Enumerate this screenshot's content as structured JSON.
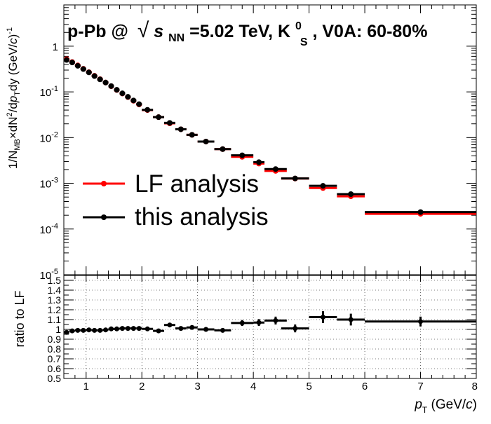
{
  "chart_data": [
    {
      "type": "scatter",
      "panel": "top",
      "title": "p-Pb @ √s_NN=5.02 TeV, K0S, V0A: 60-80%",
      "title_parts": {
        "prefix": "p-Pb @",
        "sqrt_symbol": "√",
        "s": "s",
        "s_sub": "NN",
        "energy": "=5.02 TeV, K",
        "k_sup": "0",
        "k_sub": "S",
        "suffix": ", V0A: 60-80%"
      },
      "ylabel_parts": {
        "prefix": "1/N",
        "sub1": "MB",
        "mid1": "×dN",
        "sup1": "2",
        "mid2": "/d",
        "p": "p",
        "sub2": "T",
        "mid3": "dy (GeV/",
        "c": "c",
        "close": ")",
        "sup2": "-1"
      },
      "yscale": "log",
      "xlim": [
        0.6,
        8
      ],
      "ylim": [
        1e-05,
        8
      ],
      "yticks": [
        {
          "value": 1e-05,
          "base": "10",
          "exp": "-5"
        },
        {
          "value": 0.0001,
          "base": "10",
          "exp": "-4"
        },
        {
          "value": 0.001,
          "base": "10",
          "exp": "-3"
        },
        {
          "value": 0.01,
          "base": "10",
          "exp": "-2"
        },
        {
          "value": 0.1,
          "base": "10",
          "exp": "-1"
        },
        {
          "value": 1,
          "base": "1",
          "exp": ""
        }
      ],
      "legend": {
        "placement": "lower-left",
        "entries": [
          {
            "label": "LF analysis",
            "color": "#ff0000"
          },
          {
            "label": "this analysis",
            "color": "#000000"
          }
        ]
      },
      "series": [
        {
          "name": "LF analysis",
          "color": "#ff0000",
          "x": [
            0.65,
            0.75,
            0.85,
            0.95,
            1.05,
            1.15,
            1.25,
            1.35,
            1.45,
            1.55,
            1.65,
            1.75,
            1.85,
            1.95,
            2.1,
            2.3,
            2.5,
            2.7,
            2.9,
            3.15,
            3.45,
            3.8,
            4.1,
            4.4,
            4.75,
            5.25,
            5.75,
            7.0
          ],
          "xerr": [
            0.05,
            0.05,
            0.05,
            0.05,
            0.05,
            0.05,
            0.05,
            0.05,
            0.05,
            0.05,
            0.05,
            0.05,
            0.05,
            0.05,
            0.1,
            0.1,
            0.1,
            0.1,
            0.1,
            0.15,
            0.15,
            0.2,
            0.1,
            0.2,
            0.25,
            0.25,
            0.25,
            1.0
          ],
          "y": [
            0.52,
            0.45,
            0.38,
            0.32,
            0.27,
            0.225,
            0.19,
            0.16,
            0.133,
            0.11,
            0.092,
            0.077,
            0.064,
            0.053,
            0.04,
            0.028,
            0.0205,
            0.0152,
            0.0115,
            0.0082,
            0.0056,
            0.0038,
            0.0027,
            0.00187,
            0.00127,
            0.00079,
            0.00052,
            0.000215
          ]
        },
        {
          "name": "this analysis",
          "color": "#000000",
          "x": [
            0.65,
            0.75,
            0.85,
            0.95,
            1.05,
            1.15,
            1.25,
            1.35,
            1.45,
            1.55,
            1.65,
            1.75,
            1.85,
            1.95,
            2.1,
            2.3,
            2.5,
            2.7,
            2.9,
            3.15,
            3.45,
            3.8,
            4.1,
            4.4,
            4.75,
            5.25,
            5.75,
            7.0
          ],
          "xerr": [
            0.05,
            0.05,
            0.05,
            0.05,
            0.05,
            0.05,
            0.05,
            0.05,
            0.05,
            0.05,
            0.05,
            0.05,
            0.05,
            0.05,
            0.1,
            0.1,
            0.1,
            0.1,
            0.1,
            0.15,
            0.15,
            0.2,
            0.1,
            0.2,
            0.25,
            0.25,
            0.25,
            1.0
          ],
          "y": [
            0.5,
            0.44,
            0.372,
            0.316,
            0.267,
            0.222,
            0.188,
            0.16,
            0.134,
            0.111,
            0.093,
            0.078,
            0.065,
            0.054,
            0.0405,
            0.028,
            0.021,
            0.0152,
            0.0115,
            0.0082,
            0.0056,
            0.0041,
            0.0029,
            0.00205,
            0.00128,
            0.00088,
            0.00058,
            0.000235
          ]
        }
      ]
    },
    {
      "type": "scatter",
      "panel": "bottom",
      "ylabel": "ratio to LF",
      "xlabel_parts": {
        "p": "p",
        "sub": "T",
        "unit_open": " (GeV/",
        "c": "c",
        "unit_close": ")"
      },
      "xlim": [
        0.6,
        8
      ],
      "ylim": [
        0.5,
        1.55
      ],
      "grid": true,
      "xticks": [
        {
          "value": 1,
          "label": "1"
        },
        {
          "value": 2,
          "label": "2"
        },
        {
          "value": 3,
          "label": "3"
        },
        {
          "value": 4,
          "label": "4"
        },
        {
          "value": 5,
          "label": "5"
        },
        {
          "value": 6,
          "label": "6"
        },
        {
          "value": 7,
          "label": "7"
        },
        {
          "value": 8,
          "label": "8"
        }
      ],
      "yticks": [
        {
          "value": 0.5,
          "label": "0.5"
        },
        {
          "value": 0.6,
          "label": "0.6"
        },
        {
          "value": 0.7,
          "label": "0.7"
        },
        {
          "value": 0.8,
          "label": "0.8"
        },
        {
          "value": 0.9,
          "label": "0.9"
        },
        {
          "value": 1.0,
          "label": "1"
        },
        {
          "value": 1.1,
          "label": "1.1"
        },
        {
          "value": 1.2,
          "label": "1.2"
        },
        {
          "value": 1.3,
          "label": "1.3"
        },
        {
          "value": 1.4,
          "label": "1.4"
        },
        {
          "value": 1.5,
          "label": "1.5"
        }
      ],
      "series": [
        {
          "name": "ratio",
          "color": "#000000",
          "x": [
            0.65,
            0.75,
            0.85,
            0.95,
            1.05,
            1.15,
            1.25,
            1.35,
            1.45,
            1.55,
            1.65,
            1.75,
            1.85,
            1.95,
            2.1,
            2.3,
            2.5,
            2.7,
            2.9,
            3.15,
            3.45,
            3.8,
            4.1,
            4.4,
            4.75,
            5.25,
            5.75,
            7.0
          ],
          "xerr": [
            0.05,
            0.05,
            0.05,
            0.05,
            0.05,
            0.05,
            0.05,
            0.05,
            0.05,
            0.05,
            0.05,
            0.05,
            0.05,
            0.05,
            0.1,
            0.1,
            0.1,
            0.1,
            0.1,
            0.15,
            0.15,
            0.2,
            0.1,
            0.2,
            0.25,
            0.25,
            0.25,
            1.0
          ],
          "y": [
            0.97,
            0.985,
            0.99,
            0.99,
            0.995,
            0.99,
            0.99,
            0.995,
            1.005,
            1.005,
            1.01,
            1.01,
            1.01,
            1.01,
            1.005,
            0.985,
            1.045,
            1.01,
            1.02,
            1.0,
            0.99,
            1.065,
            1.07,
            1.09,
            1.01,
            1.125,
            1.1,
            1.08
          ],
          "yerr": [
            0.015,
            0.012,
            0.012,
            0.012,
            0.012,
            0.012,
            0.012,
            0.012,
            0.012,
            0.012,
            0.012,
            0.012,
            0.012,
            0.012,
            0.015,
            0.018,
            0.02,
            0.02,
            0.02,
            0.02,
            0.02,
            0.03,
            0.035,
            0.04,
            0.04,
            0.06,
            0.06,
            0.05
          ]
        }
      ]
    }
  ]
}
